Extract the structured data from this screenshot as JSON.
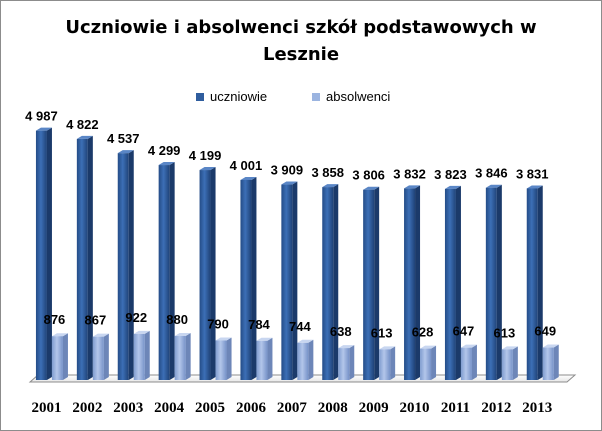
{
  "chart_data": {
    "type": "bar",
    "title_line1": "Uczniowie i absolwenci szkół podstawowych w",
    "title_line2": "Lesznie",
    "categories": [
      "2001",
      "2002",
      "2003",
      "2004",
      "2005",
      "2006",
      "2007",
      "2008",
      "2009",
      "2010",
      "2011",
      "2012",
      "2013"
    ],
    "series": [
      {
        "name": "uczniowie",
        "color": "#2f5d9e",
        "values": [
          4987,
          4822,
          4537,
          4299,
          4199,
          4001,
          3909,
          3858,
          3806,
          3832,
          3823,
          3846,
          3831
        ],
        "labels": [
          "4 987",
          "4 822",
          "4 537",
          "4 299",
          "4 199",
          "4 001",
          "3 909",
          "3 858",
          "3 806",
          "3 832",
          "3 823",
          "3 846",
          "3 831"
        ]
      },
      {
        "name": "absolwenci",
        "color": "#9bb4e0",
        "values": [
          876,
          867,
          922,
          880,
          790,
          784,
          744,
          638,
          613,
          628,
          647,
          613,
          649
        ],
        "labels": [
          "876",
          "867",
          "922",
          "880",
          "790",
          "784",
          "744",
          "638",
          "613",
          "628",
          "647",
          "613",
          "649"
        ]
      }
    ],
    "ylim": [
      0,
      5000
    ],
    "grid": false,
    "legend_position": "top"
  }
}
